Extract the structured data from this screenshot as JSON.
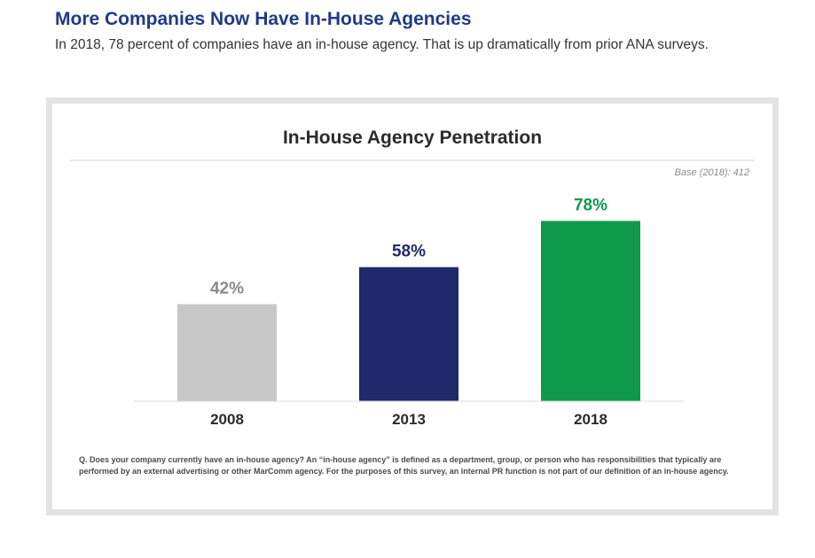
{
  "header": {
    "title": "More Companies Now Have In-House Agencies",
    "subtitle": "In 2018, 78 percent of companies have an in-house agency. That is up dramatically from prior ANA surveys."
  },
  "chart_data": {
    "type": "bar",
    "title": "In-House Agency Penetration",
    "base_note": "Base (2018): 412",
    "categories": [
      "2008",
      "2013",
      "2018"
    ],
    "values": [
      42,
      58,
      78
    ],
    "value_labels": [
      "42%",
      "58%",
      "78%"
    ],
    "colors": [
      "#c8c8c8",
      "#1f2a6b",
      "#0e9a4a"
    ],
    "label_colors": [
      "#8a8a8a",
      "#1f2a6b",
      "#0e9a4a"
    ],
    "unit": "%",
    "xlabel": "",
    "ylabel": "",
    "ylim": [
      0,
      100
    ],
    "grid": false
  },
  "footnote": "Q. Does your company currently have an in-house agency? An “in-house agency” is defined as a department, group, or person who has responsibilities that typically are performed by an external advertising or other MarComm agency. For the purposes of this survey, an internal PR function is not part of our definition of an in-house agency."
}
